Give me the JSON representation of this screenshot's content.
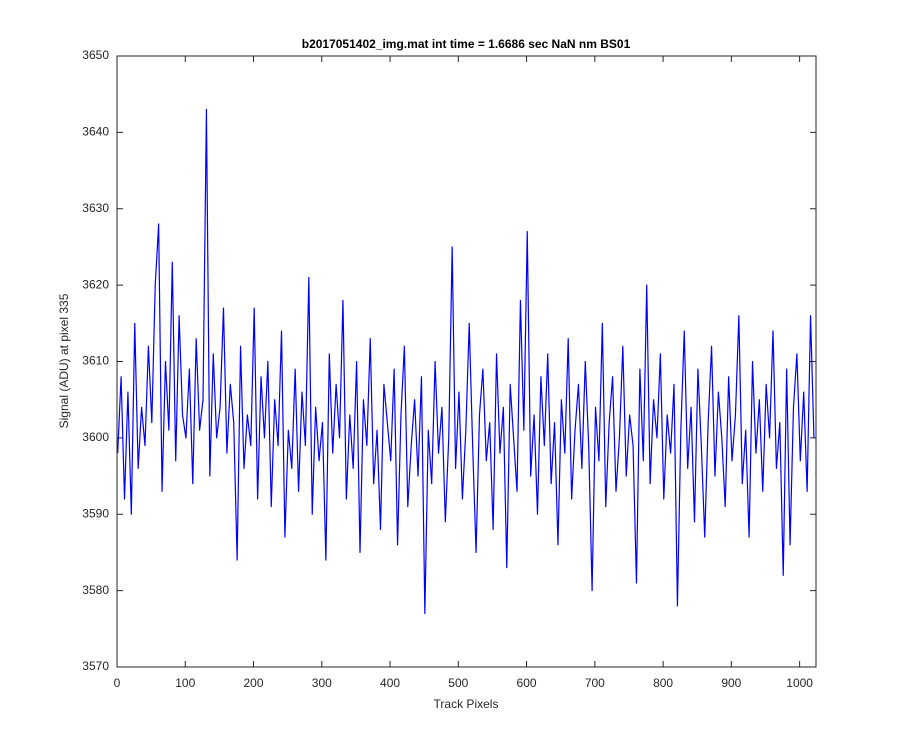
{
  "chart_data": {
    "type": "line",
    "title": "b2017051402_img.mat int time = 1.6686 sec  NaN nm BS01",
    "x_label": "Track Pixels",
    "y_label": "Signal (ADU) at pixel 335",
    "xlim": [
      0,
      1024
    ],
    "ylim": [
      3570,
      3650
    ],
    "xticks": [
      0,
      100,
      200,
      300,
      400,
      500,
      600,
      700,
      800,
      900,
      1000
    ],
    "yticks": [
      3570,
      3580,
      3590,
      3600,
      3610,
      3620,
      3630,
      3640,
      3650
    ],
    "grid": false,
    "series": [
      {
        "color": "#0000ff",
        "x": [
          1,
          6,
          11,
          16,
          21,
          26,
          31,
          36,
          41,
          46,
          51,
          56,
          61,
          66,
          71,
          76,
          81,
          86,
          91,
          96,
          101,
          106,
          111,
          116,
          121,
          126,
          131,
          136,
          141,
          146,
          151,
          156,
          161,
          166,
          171,
          176,
          181,
          186,
          191,
          196,
          201,
          206,
          211,
          216,
          221,
          226,
          231,
          236,
          241,
          246,
          251,
          256,
          261,
          266,
          271,
          276,
          281,
          286,
          291,
          296,
          301,
          306,
          311,
          316,
          321,
          326,
          331,
          336,
          341,
          346,
          351,
          356,
          361,
          366,
          371,
          376,
          381,
          386,
          391,
          396,
          401,
          406,
          411,
          416,
          421,
          426,
          431,
          436,
          441,
          446,
          451,
          456,
          461,
          466,
          471,
          476,
          481,
          486,
          491,
          496,
          501,
          506,
          511,
          516,
          521,
          526,
          531,
          536,
          541,
          546,
          551,
          556,
          561,
          566,
          571,
          576,
          581,
          586,
          591,
          596,
          601,
          606,
          611,
          616,
          621,
          626,
          631,
          636,
          641,
          646,
          651,
          656,
          661,
          666,
          671,
          676,
          681,
          686,
          691,
          696,
          701,
          706,
          711,
          716,
          721,
          726,
          731,
          736,
          741,
          746,
          751,
          756,
          761,
          766,
          771,
          776,
          781,
          786,
          791,
          796,
          801,
          806,
          811,
          816,
          821,
          826,
          831,
          836,
          841,
          846,
          851,
          856,
          861,
          866,
          871,
          876,
          881,
          886,
          891,
          896,
          901,
          906,
          911,
          916,
          921,
          926,
          931,
          936,
          941,
          946,
          951,
          956,
          961,
          966,
          971,
          976,
          981,
          986,
          991,
          996,
          1001,
          1006,
          1011,
          1016,
          1021
        ],
        "values": [
          3598,
          3608,
          3592,
          3606,
          3590,
          3615,
          3596,
          3604,
          3599,
          3612,
          3602,
          3620,
          3628,
          3593,
          3610,
          3601,
          3623,
          3597,
          3616,
          3603,
          3600,
          3609,
          3594,
          3613,
          3601,
          3605,
          3643,
          3595,
          3611,
          3600,
          3604,
          3617,
          3598,
          3607,
          3602,
          3584,
          3612,
          3596,
          3603,
          3599,
          3617,
          3592,
          3608,
          3600,
          3610,
          3591,
          3605,
          3599,
          3614,
          3587,
          3601,
          3596,
          3609,
          3593,
          3606,
          3599,
          3621,
          3590,
          3604,
          3597,
          3602,
          3584,
          3611,
          3598,
          3607,
          3600,
          3618,
          3592,
          3603,
          3596,
          3610,
          3585,
          3605,
          3599,
          3613,
          3594,
          3601,
          3588,
          3607,
          3602,
          3597,
          3609,
          3586,
          3603,
          3612,
          3591,
          3599,
          3605,
          3595,
          3608,
          3577,
          3601,
          3594,
          3610,
          3598,
          3604,
          3589,
          3600,
          3625,
          3596,
          3606,
          3592,
          3601,
          3615,
          3599,
          3585,
          3603,
          3609,
          3597,
          3602,
          3588,
          3611,
          3598,
          3604,
          3583,
          3607,
          3600,
          3593,
          3618,
          3601,
          3627,
          3595,
          3603,
          3590,
          3608,
          3599,
          3611,
          3594,
          3602,
          3586,
          3605,
          3598,
          3613,
          3592,
          3601,
          3607,
          3596,
          3610,
          3599,
          3580,
          3604,
          3597,
          3615,
          3591,
          3602,
          3608,
          3593,
          3600,
          3612,
          3595,
          3603,
          3599,
          3581,
          3609,
          3597,
          3620,
          3594,
          3605,
          3600,
          3611,
          3592,
          3603,
          3598,
          3607,
          3578,
          3601,
          3614,
          3596,
          3604,
          3589,
          3609,
          3599,
          3587,
          3602,
          3612,
          3595,
          3606,
          3600,
          3591,
          3608,
          3597,
          3603,
          3616,
          3594,
          3601,
          3587,
          3610,
          3598,
          3605,
          3593,
          3607,
          3600,
          3614,
          3596,
          3602,
          3582,
          3609,
          3586,
          3604,
          3611,
          3597,
          3606,
          3593,
          3616,
          3600
        ]
      }
    ]
  }
}
